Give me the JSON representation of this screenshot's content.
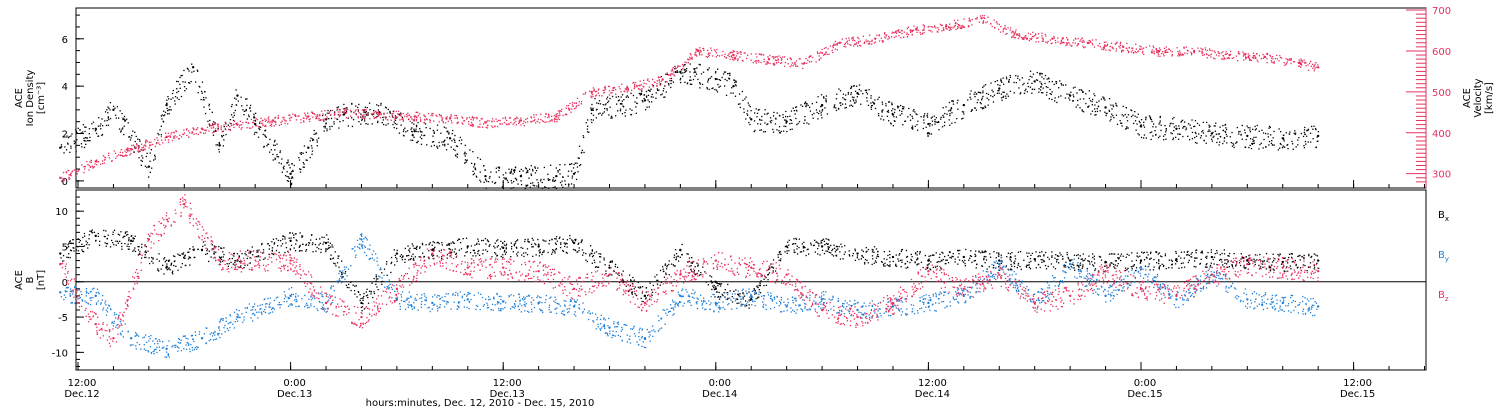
{
  "colors": {
    "black": "#000000",
    "pink": "#e8305c",
    "blue": "#1e7fd8"
  },
  "chart_data": [
    {
      "type": "scatter",
      "panel": "ion-density-velocity",
      "ylabel": [
        "ACE",
        "Ion Density",
        "[cm⁻³]"
      ],
      "ylabel_right": [
        "ACE",
        "Velocity",
        "[km/s]"
      ],
      "ylim": [
        -0.3,
        7.3
      ],
      "ylim_right": [
        265,
        705
      ],
      "yticks": [
        0,
        2,
        4,
        6
      ],
      "yticks_right": [
        300,
        400,
        500,
        600,
        700
      ],
      "series": [
        {
          "color": "#000000",
          "axis": "left",
          "x": [
            "2010-12-12T11:00",
            "2010-12-12T13:00",
            "2010-12-12T14:00",
            "2010-12-12T16:00",
            "2010-12-12T17:00",
            "2010-12-12T18:30",
            "2010-12-12T20:00",
            "2010-12-12T21:00",
            "2010-12-12T22:00",
            "2010-12-13T00:00",
            "2010-12-13T01:00",
            "2010-12-13T02:00",
            "2010-12-13T03:00",
            "2010-12-13T05:00",
            "2010-12-13T07:00",
            "2010-12-13T09:00",
            "2010-12-13T11:00",
            "2010-12-13T13:00",
            "2010-12-13T15:00",
            "2010-12-13T16:00",
            "2010-12-13T17:00",
            "2010-12-13T20:00",
            "2010-12-13T22:00",
            "2010-12-14T00:00",
            "2010-12-14T01:00",
            "2010-12-14T02:00",
            "2010-12-14T04:00",
            "2010-12-14T06:00",
            "2010-12-14T08:00",
            "2010-12-14T10:00",
            "2010-12-14T12:00",
            "2010-12-14T14:00",
            "2010-12-14T16:00",
            "2010-12-14T18:00",
            "2010-12-14T20:00",
            "2010-12-14T22:00",
            "2010-12-15T00:00",
            "2010-12-15T02:00",
            "2010-12-15T04:00",
            "2010-12-15T06:00",
            "2010-12-15T08:00",
            "2010-12-15T10:00"
          ],
          "y": [
            1.4,
            2.2,
            3.0,
            0.6,
            3.2,
            4.8,
            1.5,
            3.6,
            2.4,
            0.3,
            1.4,
            2.6,
            2.8,
            2.9,
            2.1,
            1.8,
            0.2,
            0.2,
            0.2,
            0.3,
            3.0,
            3.4,
            4.6,
            4.3,
            4.0,
            2.6,
            2.5,
            3.2,
            3.7,
            2.8,
            2.4,
            3.2,
            3.9,
            4.2,
            3.6,
            3.1,
            2.3,
            2.2,
            2.0,
            1.9,
            1.8,
            1.9
          ]
        },
        {
          "color": "#e8305c",
          "axis": "right",
          "x": [
            "2010-12-12T11:00",
            "2010-12-12T13:00",
            "2010-12-12T15:00",
            "2010-12-12T17:00",
            "2010-12-12T19:00",
            "2010-12-12T21:00",
            "2010-12-12T23:00",
            "2010-12-13T01:00",
            "2010-12-13T03:00",
            "2010-12-13T05:00",
            "2010-12-13T07:00",
            "2010-12-13T09:00",
            "2010-12-13T11:00",
            "2010-12-13T13:00",
            "2010-12-13T15:00",
            "2010-12-13T17:00",
            "2010-12-13T19:00",
            "2010-12-13T21:00",
            "2010-12-13T23:00",
            "2010-12-14T01:00",
            "2010-12-14T03:00",
            "2010-12-14T05:00",
            "2010-12-14T07:00",
            "2010-12-14T09:00",
            "2010-12-14T11:00",
            "2010-12-14T13:00",
            "2010-12-14T15:00",
            "2010-12-14T17:00",
            "2010-12-14T19:00",
            "2010-12-14T21:00",
            "2010-12-14T23:00",
            "2010-12-15T01:00",
            "2010-12-15T03:00",
            "2010-12-15T05:00",
            "2010-12-15T07:00",
            "2010-12-15T09:00",
            "2010-12-15T10:00"
          ],
          "y": [
            290,
            330,
            360,
            390,
            410,
            420,
            430,
            440,
            450,
            445,
            440,
            435,
            425,
            430,
            440,
            500,
            510,
            530,
            600,
            590,
            580,
            570,
            620,
            630,
            650,
            660,
            680,
            640,
            630,
            620,
            610,
            600,
            600,
            590,
            585,
            570,
            560
          ]
        }
      ]
    },
    {
      "type": "scatter",
      "panel": "magnetic-field",
      "ylabel": [
        "ACE",
        "B",
        "[nT]"
      ],
      "ylim": [
        -12.5,
        13
      ],
      "yticks": [
        -10,
        -5,
        0,
        5,
        10
      ],
      "legend": [
        "Bx",
        "By",
        "Bz"
      ],
      "series": [
        {
          "name": "Bx",
          "color": "#000000",
          "x": [
            "2010-12-12T11:00",
            "2010-12-12T13:00",
            "2010-12-12T15:00",
            "2010-12-12T17:00",
            "2010-12-12T19:00",
            "2010-12-12T21:00",
            "2010-12-13T00:00",
            "2010-12-13T02:00",
            "2010-12-13T04:00",
            "2010-12-13T06:00",
            "2010-12-13T08:00",
            "2010-12-13T10:00",
            "2010-12-13T12:00",
            "2010-12-13T14:00",
            "2010-12-13T16:00",
            "2010-12-13T18:00",
            "2010-12-13T20:00",
            "2010-12-13T22:00",
            "2010-12-14T00:00",
            "2010-12-14T02:00",
            "2010-12-14T04:00",
            "2010-12-14T06:00",
            "2010-12-14T08:00",
            "2010-12-14T10:00",
            "2010-12-14T12:00",
            "2010-12-14T14:00",
            "2010-12-14T16:00",
            "2010-12-14T18:00",
            "2010-12-14T20:00",
            "2010-12-14T22:00",
            "2010-12-15T00:00",
            "2010-12-15T02:00",
            "2010-12-15T04:00",
            "2010-12-15T06:00",
            "2010-12-15T08:00",
            "2010-12-15T10:00"
          ],
          "y": [
            4.0,
            6.5,
            5.8,
            2.0,
            4.5,
            3.0,
            5.8,
            5.5,
            -3.0,
            4.0,
            4.5,
            5.0,
            4.8,
            5.0,
            5.5,
            2.0,
            -2.0,
            4.5,
            -1.0,
            -2.5,
            5.0,
            5.0,
            4.0,
            3.5,
            3.0,
            3.5,
            3.0,
            3.2,
            3.0,
            2.8,
            3.0,
            3.2,
            3.5,
            3.0,
            2.8,
            3.0
          ]
        },
        {
          "name": "By",
          "color": "#1e7fd8",
          "x": [
            "2010-12-12T11:00",
            "2010-12-12T13:00",
            "2010-12-12T15:00",
            "2010-12-12T17:00",
            "2010-12-12T19:00",
            "2010-12-12T21:00",
            "2010-12-13T00:00",
            "2010-12-13T02:00",
            "2010-12-13T04:00",
            "2010-12-13T06:00",
            "2010-12-13T08:00",
            "2010-12-13T10:00",
            "2010-12-13T12:00",
            "2010-12-13T14:00",
            "2010-12-13T16:00",
            "2010-12-13T18:00",
            "2010-12-13T20:00",
            "2010-12-13T22:00",
            "2010-12-14T00:00",
            "2010-12-14T02:00",
            "2010-12-14T04:00",
            "2010-12-14T06:00",
            "2010-12-14T08:00",
            "2010-12-14T10:00",
            "2010-12-14T12:00",
            "2010-12-14T14:00",
            "2010-12-14T16:00",
            "2010-12-14T18:00",
            "2010-12-14T20:00",
            "2010-12-14T22:00",
            "2010-12-15T00:00",
            "2010-12-15T02:00",
            "2010-12-15T04:00",
            "2010-12-15T06:00",
            "2010-12-15T08:00",
            "2010-12-15T10:00"
          ],
          "y": [
            -1.5,
            -2.0,
            -8.0,
            -9.5,
            -8.0,
            -5.0,
            -2.0,
            -3.0,
            6.0,
            -2.5,
            -3.0,
            -2.5,
            -2.8,
            -3.0,
            -3.5,
            -6.5,
            -8.0,
            -2.0,
            -3.0,
            -2.0,
            -3.5,
            -2.5,
            -4.0,
            -3.5,
            -3.0,
            -2.0,
            2.5,
            -3.0,
            2.5,
            -2.0,
            2.0,
            -2.5,
            1.0,
            -2.5,
            -3.0,
            -3.5
          ]
        },
        {
          "name": "Bz",
          "color": "#e8305c",
          "x": [
            "2010-12-12T11:00",
            "2010-12-12T13:00",
            "2010-12-12T14:00",
            "2010-12-12T16:00",
            "2010-12-12T18:00",
            "2010-12-12T20:00",
            "2010-12-13T00:00",
            "2010-12-13T02:00",
            "2010-12-13T04:00",
            "2010-12-13T06:00",
            "2010-12-13T08:00",
            "2010-12-13T10:00",
            "2010-12-13T12:00",
            "2010-12-13T14:00",
            "2010-12-13T16:00",
            "2010-12-13T18:00",
            "2010-12-13T20:00",
            "2010-12-13T22:00",
            "2010-12-14T00:00",
            "2010-12-14T02:00",
            "2010-12-14T04:00",
            "2010-12-14T06:00",
            "2010-12-14T08:00",
            "2010-12-14T10:00",
            "2010-12-14T12:00",
            "2010-12-14T14:00",
            "2010-12-14T16:00",
            "2010-12-14T18:00",
            "2010-12-14T20:00",
            "2010-12-14T22:00",
            "2010-12-15T00:00",
            "2010-12-15T02:00",
            "2010-12-15T04:00",
            "2010-12-15T06:00",
            "2010-12-15T08:00",
            "2010-12-15T10:00"
          ],
          "y": [
            2.5,
            -6.0,
            -8.0,
            6.0,
            11.0,
            3.0,
            3.0,
            -3.0,
            -5.0,
            -1.0,
            4.0,
            2.0,
            2.0,
            1.5,
            -1.0,
            1.0,
            -3.0,
            1.0,
            3.0,
            2.0,
            1.0,
            -4.0,
            -5.0,
            -3.0,
            1.5,
            -1.0,
            1.0,
            -3.0,
            -2.0,
            1.5,
            -1.0,
            -2.0,
            1.0,
            2.5,
            2.0,
            1.5
          ]
        }
      ]
    }
  ],
  "x_axis": {
    "ticks": [
      {
        "time": "12:00",
        "date": "Dec.12"
      },
      {
        "time": "0:00",
        "date": "Dec.13"
      },
      {
        "time": "12:00",
        "date": "Dec.13"
      },
      {
        "time": "0:00",
        "date": "Dec.14"
      },
      {
        "time": "12:00",
        "date": "Dec.14"
      },
      {
        "time": "0:00",
        "date": "Dec.15"
      },
      {
        "time": "12:00",
        "date": "Dec.15"
      }
    ],
    "label": "hours:minutes, Dec. 12, 2010 - Dec. 15, 2010"
  }
}
